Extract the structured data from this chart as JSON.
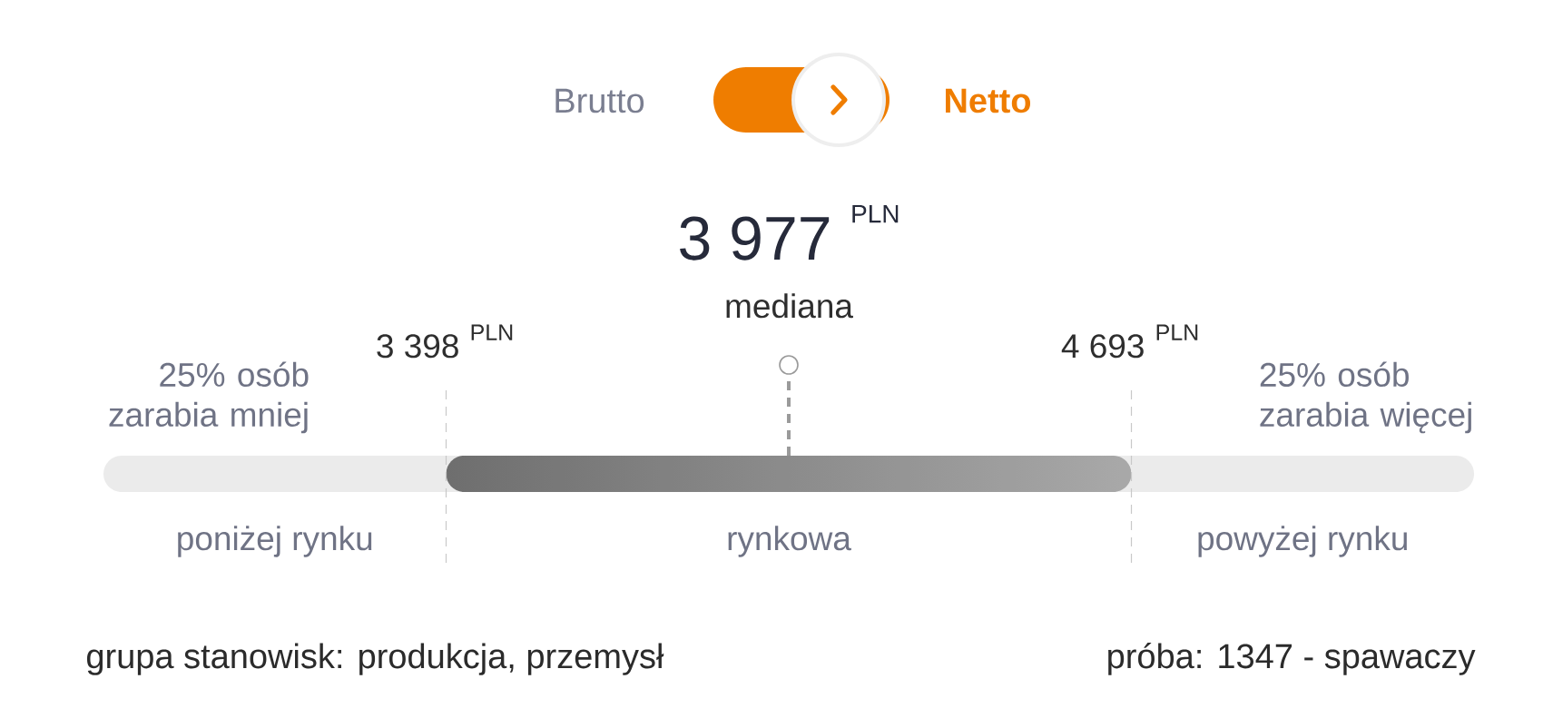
{
  "chart_data": {
    "type": "other",
    "categories": [
      "25% osób zarabia mniej",
      "mediana",
      "25% osób zarabia więcej"
    ],
    "values": [
      3398,
      3977,
      4693
    ],
    "data_labels": true,
    "ylabel": "PLN",
    "annotations": [
      "Brutto",
      "Netto",
      "poniżej rynku",
      "rynkowa",
      "powyżej rynku",
      "grupa stanowisk: produkcja, przemysł",
      "próba: 1347 - spawaczy"
    ]
  }
}
